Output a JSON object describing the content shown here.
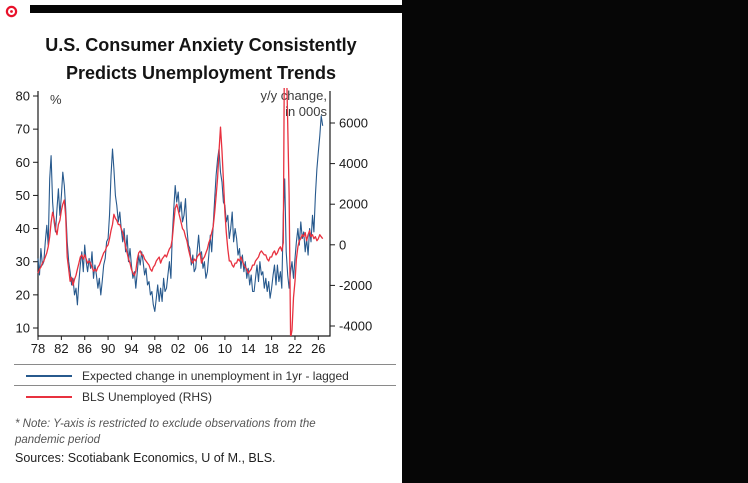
{
  "page": {
    "title_line1": "U.S. Consumer Anxiety Consistently",
    "title_line2": "Predicts Unemployment Trends",
    "note_line1": "* Note: Y-axis is restricted to exclude observations from the",
    "note_line2": "pandemic period",
    "sources": "Sources: Scotiabank Economics, U of M., BLS."
  },
  "colors": {
    "blue_line": "#27598d",
    "red_line": "#e8313f",
    "frame": "#1a1a1a",
    "marker_red": "#e8112a"
  },
  "chart_data": {
    "type": "line",
    "title": "U.S. Consumer Anxiety Consistently Predicts Unemployment Trends",
    "grid": false,
    "legend_position": "bottom",
    "left_axis": {
      "unit_label": "%",
      "range": [
        10,
        80
      ],
      "tick_values": [
        80,
        70,
        60,
        50,
        40,
        30,
        20,
        10
      ],
      "tick_labels": [
        "80",
        "70",
        "60",
        "50",
        "40",
        "30",
        "20",
        "10"
      ]
    },
    "right_axis": {
      "unit_label_line1": "y/y change,",
      "unit_label_line2": "in 000s",
      "range": [
        -4000,
        6000
      ],
      "tick_values": [
        6000,
        4000,
        2000,
        0,
        -2000,
        -4000
      ],
      "tick_labels": [
        "6000",
        "4000",
        "2000",
        "0",
        "-2000",
        "-4000"
      ]
    },
    "x_axis": {
      "range": [
        1978,
        2028
      ],
      "tick_years": [
        1978,
        1982,
        1986,
        1990,
        1994,
        1998,
        2002,
        2006,
        2010,
        2014,
        2018,
        2022,
        2026
      ],
      "tick_labels": [
        "78",
        "82",
        "86",
        "90",
        "94",
        "98",
        "02",
        "06",
        "10",
        "14",
        "18",
        "22",
        "26"
      ]
    },
    "series": [
      {
        "name": "Expected change in unemployment in 1yr - lagged",
        "axis": "left",
        "color_key": "blue_line",
        "x_start": 1978,
        "x_step": 0.25,
        "values": [
          31,
          26,
          34,
          29,
          30,
          36,
          41,
          35,
          55,
          62,
          48,
          42,
          39,
          46,
          52,
          44,
          50,
          57,
          53,
          46,
          36,
          30,
          27,
          23,
          25,
          20,
          22,
          17,
          24,
          29,
          33,
          27,
          35,
          30,
          27,
          31,
          28,
          33,
          25,
          29,
          26,
          22,
          25,
          20,
          24,
          29,
          31,
          36,
          37,
          44,
          56,
          64,
          58,
          50,
          47,
          42,
          45,
          40,
          36,
          40,
          33,
          38,
          30,
          34,
          29,
          25,
          27,
          22,
          27,
          32,
          29,
          33,
          30,
          26,
          28,
          23,
          24,
          20,
          21,
          17,
          15,
          19,
          23,
          18,
          22,
          18,
          25,
          21,
          22,
          26,
          30,
          25,
          38,
          46,
          53,
          48,
          51,
          45,
          48,
          42,
          44,
          49,
          40,
          35,
          34,
          29,
          32,
          27,
          28,
          33,
          38,
          32,
          33,
          28,
          30,
          25,
          27,
          32,
          38,
          33,
          41,
          49,
          56,
          61,
          64,
          57,
          54,
          48,
          47,
          42,
          44,
          37,
          40,
          45,
          36,
          40,
          37,
          32,
          34,
          28,
          32,
          27,
          30,
          25,
          28,
          23,
          26,
          21,
          21,
          25,
          29,
          24,
          30,
          26,
          27,
          22,
          25,
          21,
          24,
          19,
          22,
          26,
          29,
          23,
          29,
          24,
          27,
          22,
          44,
          55,
          33,
          26,
          22,
          27,
          30,
          25,
          31,
          36,
          40,
          35,
          42,
          37,
          39,
          33,
          37,
          32,
          40,
          36,
          44,
          39,
          50,
          58,
          63,
          68,
          74,
          71
        ]
      },
      {
        "name": "BLS Unemployed (RHS)",
        "axis": "right",
        "color_key": "red_line",
        "x_start": 1978,
        "x_step": 0.25,
        "values": [
          -1400,
          -1200,
          -1100,
          -900,
          -800,
          -600,
          -400,
          -100,
          400,
          1100,
          1600,
          1300,
          800,
          500,
          1000,
          1200,
          1700,
          2000,
          2200,
          1400,
          -600,
          -1200,
          -1800,
          -1600,
          -2000,
          -1700,
          -1500,
          -1200,
          -900,
          -600,
          -500,
          -700,
          -500,
          -700,
          -900,
          -800,
          -900,
          -1100,
          -1300,
          -1200,
          -1300,
          -1100,
          -1000,
          -800,
          -600,
          -400,
          -300,
          -100,
          0,
          300,
          700,
          1000,
          1500,
          1300,
          1200,
          1000,
          1000,
          800,
          600,
          300,
          -100,
          -400,
          -700,
          -900,
          -1200,
          -1400,
          -1500,
          -1300,
          -700,
          -400,
          -300,
          -500,
          -500,
          -700,
          -800,
          -900,
          -1000,
          -1200,
          -1300,
          -1100,
          -1000,
          -800,
          -700,
          -600,
          -900,
          -700,
          -600,
          -500,
          -600,
          -400,
          -200,
          -100,
          300,
          1100,
          1800,
          2000,
          1700,
          1400,
          1100,
          800,
          700,
          400,
          200,
          -200,
          -500,
          -800,
          -900,
          -700,
          -800,
          -600,
          -500,
          -400,
          -900,
          -700,
          -600,
          -400,
          -200,
          100,
          300,
          600,
          900,
          1600,
          2400,
          3300,
          4600,
          5800,
          4600,
          3200,
          1600,
          600,
          -200,
          -800,
          -800,
          -1000,
          -1100,
          -900,
          -900,
          -700,
          -800,
          -600,
          -800,
          -1000,
          -1100,
          -1200,
          -1400,
          -1300,
          -1200,
          -1000,
          -1000,
          -800,
          -700,
          -600,
          -400,
          -300,
          -400,
          -500,
          -500,
          -700,
          -800,
          -600,
          -600,
          -400,
          -300,
          -500,
          -400,
          -200,
          -100,
          -300,
          100,
          12000,
          9500,
          6000,
          2500,
          -4600,
          -4200,
          -2600,
          -1800,
          -700,
          -100,
          200,
          300,
          500,
          400,
          600,
          200,
          500,
          700,
          400,
          500,
          300,
          400,
          200,
          300,
          500,
          400,
          300
        ]
      }
    ]
  }
}
